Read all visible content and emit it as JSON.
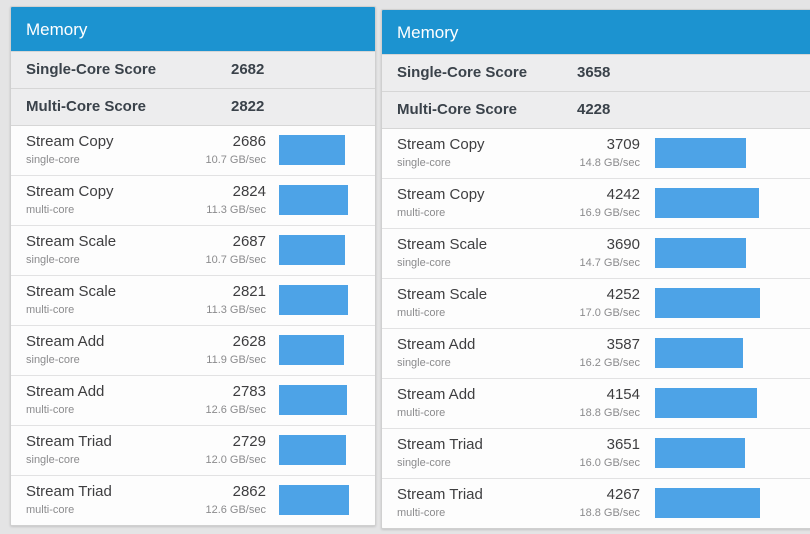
{
  "colors": {
    "header_bg": "#1c93d0",
    "bar_fill": "#4da3e7",
    "score_row_bg": "#ededee",
    "page_bg": "#e4e4e5"
  },
  "chart_data": {
    "type": "bar",
    "note": "horizontal score bars, shared scale across both panels",
    "max_score": 4267
  },
  "panels": [
    {
      "title": "Memory",
      "scores": [
        {
          "label": "Single-Core Score",
          "value": "2682"
        },
        {
          "label": "Multi-Core Score",
          "value": "2822"
        }
      ],
      "rows": [
        {
          "name": "Stream Copy",
          "variant": "single-core",
          "score": 2686,
          "rate": "10.7 GB/sec"
        },
        {
          "name": "Stream Copy",
          "variant": "multi-core",
          "score": 2824,
          "rate": "11.3 GB/sec"
        },
        {
          "name": "Stream Scale",
          "variant": "single-core",
          "score": 2687,
          "rate": "10.7 GB/sec"
        },
        {
          "name": "Stream Scale",
          "variant": "multi-core",
          "score": 2821,
          "rate": "11.3 GB/sec"
        },
        {
          "name": "Stream Add",
          "variant": "single-core",
          "score": 2628,
          "rate": "11.9 GB/sec"
        },
        {
          "name": "Stream Add",
          "variant": "multi-core",
          "score": 2783,
          "rate": "12.6 GB/sec"
        },
        {
          "name": "Stream Triad",
          "variant": "single-core",
          "score": 2729,
          "rate": "12.0 GB/sec"
        },
        {
          "name": "Stream Triad",
          "variant": "multi-core",
          "score": 2862,
          "rate": "12.6 GB/sec"
        }
      ]
    },
    {
      "title": "Memory",
      "scores": [
        {
          "label": "Single-Core Score",
          "value": "3658"
        },
        {
          "label": "Multi-Core Score",
          "value": "4228"
        }
      ],
      "rows": [
        {
          "name": "Stream Copy",
          "variant": "single-core",
          "score": 3709,
          "rate": "14.8 GB/sec"
        },
        {
          "name": "Stream Copy",
          "variant": "multi-core",
          "score": 4242,
          "rate": "16.9 GB/sec"
        },
        {
          "name": "Stream Scale",
          "variant": "single-core",
          "score": 3690,
          "rate": "14.7 GB/sec"
        },
        {
          "name": "Stream Scale",
          "variant": "multi-core",
          "score": 4252,
          "rate": "17.0 GB/sec"
        },
        {
          "name": "Stream Add",
          "variant": "single-core",
          "score": 3587,
          "rate": "16.2 GB/sec"
        },
        {
          "name": "Stream Add",
          "variant": "multi-core",
          "score": 4154,
          "rate": "18.8 GB/sec"
        },
        {
          "name": "Stream Triad",
          "variant": "single-core",
          "score": 3651,
          "rate": "16.0 GB/sec"
        },
        {
          "name": "Stream Triad",
          "variant": "multi-core",
          "score": 4267,
          "rate": "18.8 GB/sec"
        }
      ]
    }
  ]
}
